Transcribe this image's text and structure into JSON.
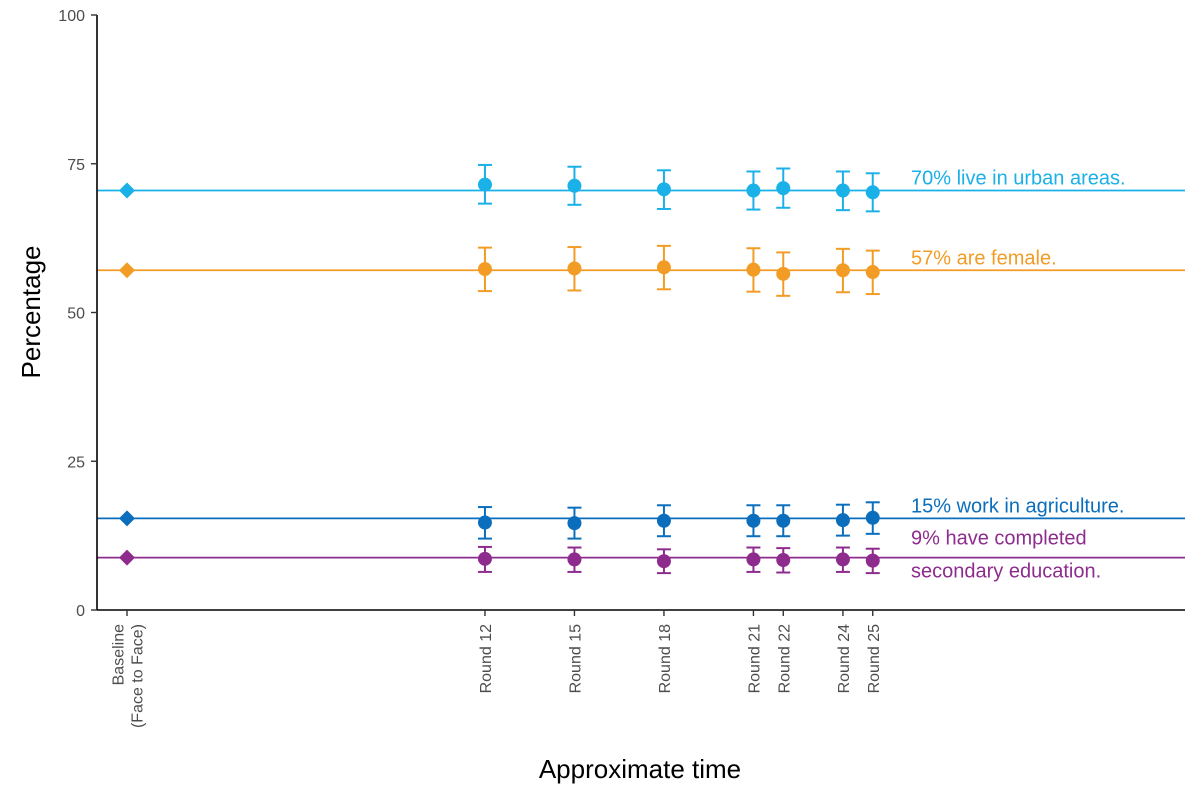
{
  "chart_data": {
    "type": "scatter",
    "xlabel": "Approximate time",
    "ylabel": "Percentage",
    "ylim": [
      0,
      100
    ],
    "yticks": [
      "0",
      "25",
      "50",
      "75",
      "100"
    ],
    "grid": false,
    "x_categories": [
      {
        "lines": [
          "Baseline",
          "(Face to Face)"
        ],
        "time": 0
      },
      {
        "lines": [
          "Round 12"
        ],
        "time": 12
      },
      {
        "lines": [
          "Round 15"
        ],
        "time": 15
      },
      {
        "lines": [
          "Round 18"
        ],
        "time": 18
      },
      {
        "lines": [
          "Round 21"
        ],
        "time": 21
      },
      {
        "lines": [
          "Round 22"
        ],
        "time": 22
      },
      {
        "lines": [
          "Round 24"
        ],
        "time": 24
      },
      {
        "lines": [
          "Round 25"
        ],
        "time": 25
      }
    ],
    "series": [
      {
        "key": "urban",
        "color": "#1ab0e8",
        "baseline": 70.5,
        "values": [
          71.5,
          71.3,
          70.7,
          70.5,
          70.9,
          70.5,
          70.2
        ],
        "lower": [
          68.3,
          68.1,
          67.4,
          67.3,
          67.6,
          67.2,
          67.0
        ],
        "upper": [
          74.8,
          74.5,
          73.9,
          73.7,
          74.2,
          73.7,
          73.4
        ],
        "label_lines": [
          "70% live in urban areas."
        ]
      },
      {
        "key": "female",
        "color": "#f39c25",
        "baseline": 57.1,
        "values": [
          57.3,
          57.4,
          57.6,
          57.2,
          56.5,
          57.1,
          56.8
        ],
        "lower": [
          53.6,
          53.7,
          53.9,
          53.5,
          52.8,
          53.4,
          53.1
        ],
        "upper": [
          60.9,
          61.0,
          61.2,
          60.8,
          60.1,
          60.7,
          60.4
        ],
        "label_lines": [
          "57% are female."
        ]
      },
      {
        "key": "agriculture",
        "color": "#0a6ebd",
        "baseline": 15.4,
        "values": [
          14.7,
          14.6,
          15.0,
          15.0,
          15.0,
          15.1,
          15.5
        ],
        "lower": [
          12.0,
          12.0,
          12.4,
          12.4,
          12.4,
          12.5,
          12.8
        ],
        "upper": [
          17.3,
          17.2,
          17.6,
          17.6,
          17.6,
          17.7,
          18.1
        ],
        "label_lines": [
          "15% work in agriculture."
        ]
      },
      {
        "key": "education",
        "color": "#8e2c8e",
        "baseline": 8.8,
        "values": [
          8.6,
          8.5,
          8.2,
          8.5,
          8.4,
          8.5,
          8.3
        ],
        "lower": [
          6.4,
          6.4,
          6.2,
          6.4,
          6.3,
          6.4,
          6.2
        ],
        "upper": [
          10.6,
          10.5,
          10.2,
          10.5,
          10.4,
          10.5,
          10.3
        ],
        "label_lines": [
          "9% have completed",
          "secondary education."
        ]
      }
    ]
  }
}
